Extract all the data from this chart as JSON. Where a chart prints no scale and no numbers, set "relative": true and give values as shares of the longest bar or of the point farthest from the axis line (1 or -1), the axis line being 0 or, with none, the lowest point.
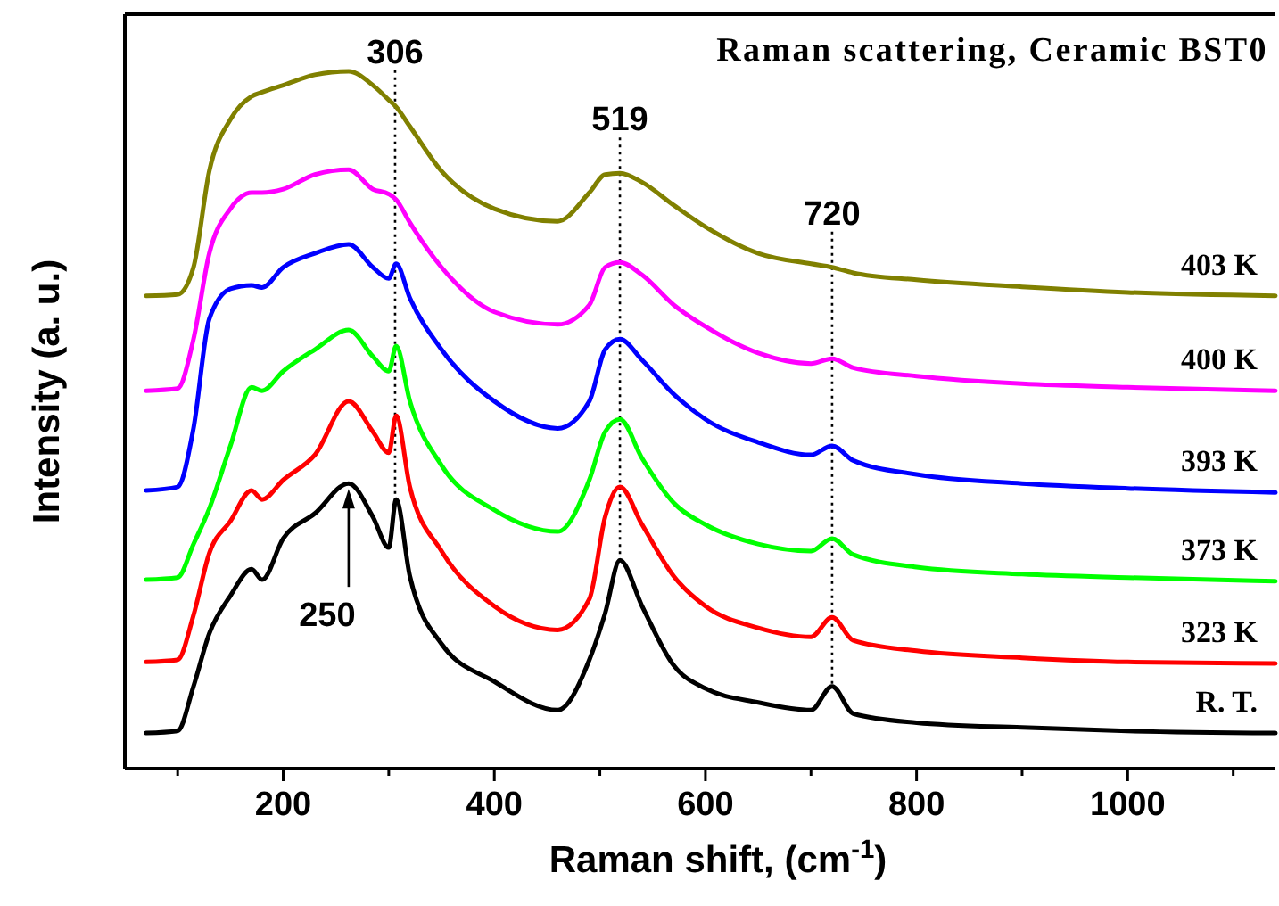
{
  "chart_data": {
    "type": "line",
    "title": "Raman scattering, Ceramic BST0",
    "xlabel": "Raman shift, (cm$^{-1}$)",
    "ylabel": "Intensity (a. u.)",
    "relative": true,
    "grid": false,
    "legend": false,
    "marker": "none",
    "line_style": "solid",
    "x": [
      70,
      100,
      115,
      130,
      150,
      170,
      180,
      200,
      230,
      262,
      285,
      300,
      307,
      320,
      350,
      400,
      460,
      490,
      505,
      519,
      540,
      570,
      600,
      650,
      700,
      720,
      740,
      800,
      900,
      1000,
      1140
    ],
    "xlim": [
      50,
      1140
    ],
    "xticks": [
      {
        "value": 100,
        "label": null
      },
      200,
      {
        "value": 300,
        "label": null
      },
      400,
      {
        "value": 500,
        "label": null
      },
      600,
      {
        "value": 700,
        "label": null
      },
      800,
      {
        "value": 900,
        "label": null
      },
      1000,
      {
        "value": 1100,
        "label": null
      }
    ],
    "series": [
      {
        "name": "R. T.",
        "color": "#000000",
        "values": [
          0.051,
          0.054,
          0.118,
          0.194,
          0.248,
          0.286,
          0.271,
          0.33,
          0.366,
          0.409,
          0.361,
          0.317,
          0.386,
          0.276,
          0.179,
          0.125,
          0.084,
          0.156,
          0.223,
          0.299,
          0.233,
          0.148,
          0.115,
          0.095,
          0.084,
          0.118,
          0.079,
          0.066,
          0.059,
          0.054,
          0.051
        ]
      },
      {
        "name": "323 K",
        "color": "#ff0000",
        "values": [
          0.153,
          0.156,
          0.22,
          0.309,
          0.355,
          0.399,
          0.386,
          0.414,
          0.45,
          0.527,
          0.483,
          0.453,
          0.506,
          0.404,
          0.312,
          0.233,
          0.199,
          0.243,
          0.361,
          0.404,
          0.35,
          0.276,
          0.233,
          0.202,
          0.189,
          0.217,
          0.184,
          0.169,
          0.159,
          0.153,
          0.151
        ]
      },
      {
        "name": "373 K",
        "color": "#00ff00",
        "values": [
          0.271,
          0.274,
          0.322,
          0.373,
          0.463,
          0.547,
          0.542,
          0.57,
          0.601,
          0.629,
          0.591,
          0.57,
          0.606,
          0.527,
          0.435,
          0.371,
          0.34,
          0.414,
          0.483,
          0.501,
          0.445,
          0.381,
          0.35,
          0.322,
          0.312,
          0.33,
          0.307,
          0.289,
          0.279,
          0.274,
          0.269
        ]
      },
      {
        "name": "393 K",
        "color": "#0000ff",
        "values": [
          0.399,
          0.404,
          0.488,
          0.645,
          0.688,
          0.693,
          0.69,
          0.719,
          0.739,
          0.752,
          0.719,
          0.703,
          0.724,
          0.675,
          0.601,
          0.527,
          0.488,
          0.527,
          0.601,
          0.616,
          0.586,
          0.537,
          0.501,
          0.468,
          0.45,
          0.463,
          0.442,
          0.422,
          0.409,
          0.402,
          0.396
        ]
      },
      {
        "name": "400 K",
        "color": "#ff00ff",
        "values": [
          0.542,
          0.545,
          0.616,
          0.739,
          0.803,
          0.826,
          0.826,
          0.831,
          0.852,
          0.859,
          0.831,
          0.824,
          0.816,
          0.783,
          0.719,
          0.655,
          0.637,
          0.665,
          0.719,
          0.726,
          0.708,
          0.665,
          0.634,
          0.596,
          0.581,
          0.588,
          0.575,
          0.563,
          0.552,
          0.547,
          0.542
        ]
      },
      {
        "name": "403 K",
        "color": "#808000",
        "values": [
          0.678,
          0.68,
          0.719,
          0.857,
          0.931,
          0.964,
          0.97,
          0.98,
          0.995,
          1,
          0.98,
          0.959,
          0.949,
          0.921,
          0.857,
          0.803,
          0.785,
          0.826,
          0.852,
          0.854,
          0.841,
          0.808,
          0.777,
          0.739,
          0.724,
          0.719,
          0.711,
          0.701,
          0.691,
          0.683,
          0.678
        ]
      }
    ],
    "ref_lines": [
      {
        "axis": "x",
        "value": 306,
        "label": "306",
        "line_style": "dotted",
        "color": "#000000"
      },
      {
        "axis": "x",
        "value": 519,
        "label": "519",
        "line_style": "dotted",
        "color": "#000000"
      },
      {
        "axis": "x",
        "value": 720,
        "label": "720",
        "line_style": "dotted",
        "color": "#000000"
      }
    ],
    "annotations": [
      {
        "text": "250",
        "x": 262,
        "y": 0.409
      }
    ]
  }
}
